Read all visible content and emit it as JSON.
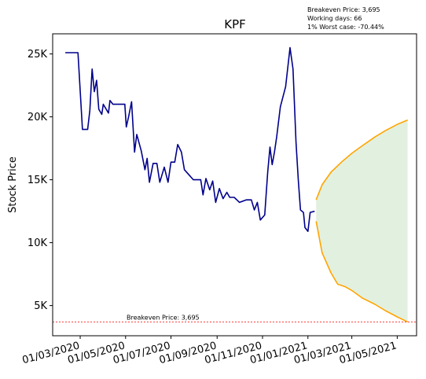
{
  "stats": {
    "breakeven": "Breakeven Price: 3,695",
    "working_days": "Working days: 66",
    "worst_case": "1% Worst case: -70.44%"
  },
  "chart_data": {
    "type": "line",
    "title": "KPF",
    "xlabel": "",
    "ylabel": "Stock Price",
    "x_ticks": [
      "01/03/2020",
      "01/05/2020",
      "01/07/2020",
      "01/09/2020",
      "01/11/2020",
      "01/01/2021",
      "01/03/2021",
      "01/05/2021"
    ],
    "y_ticks": [
      "5K",
      "10K",
      "15K",
      "20K",
      "25K"
    ],
    "xlim": [
      "2020-01-24",
      "2021-05-27"
    ],
    "ylim": [
      2600,
      26600
    ],
    "grid": false,
    "colors": {
      "history": "#00008b",
      "forecast": "#ffa500",
      "band_fill": "#e2f0e0",
      "breakeven": "#ff0000"
    },
    "series": [
      {
        "key": "history",
        "points": [
          [
            "2020-02-10",
            25100
          ],
          [
            "2020-02-27",
            25100
          ],
          [
            "2020-03-04",
            19000
          ],
          [
            "2020-03-11",
            19000
          ],
          [
            "2020-03-14",
            20500
          ],
          [
            "2020-03-17",
            23800
          ],
          [
            "2020-03-20",
            22000
          ],
          [
            "2020-03-23",
            22900
          ],
          [
            "2020-03-26",
            20600
          ],
          [
            "2020-03-30",
            20200
          ],
          [
            "2020-04-01",
            21000
          ],
          [
            "2020-04-08",
            20300
          ],
          [
            "2020-04-10",
            21300
          ],
          [
            "2020-04-14",
            21000
          ],
          [
            "2020-04-30",
            21000
          ],
          [
            "2020-05-02",
            19200
          ],
          [
            "2020-05-05",
            20000
          ],
          [
            "2020-05-09",
            21200
          ],
          [
            "2020-05-13",
            17200
          ],
          [
            "2020-05-16",
            18600
          ],
          [
            "2020-05-22",
            17300
          ],
          [
            "2020-05-27",
            15800
          ],
          [
            "2020-05-30",
            16700
          ],
          [
            "2020-06-02",
            14800
          ],
          [
            "2020-06-07",
            16300
          ],
          [
            "2020-06-12",
            16300
          ],
          [
            "2020-06-16",
            14800
          ],
          [
            "2020-06-22",
            16000
          ],
          [
            "2020-06-27",
            14800
          ],
          [
            "2020-07-01",
            16400
          ],
          [
            "2020-07-06",
            16400
          ],
          [
            "2020-07-10",
            17800
          ],
          [
            "2020-07-15",
            17200
          ],
          [
            "2020-07-19",
            15800
          ],
          [
            "2020-07-25",
            15400
          ],
          [
            "2020-07-31",
            15000
          ],
          [
            "2020-08-10",
            15000
          ],
          [
            "2020-08-13",
            13800
          ],
          [
            "2020-08-17",
            15100
          ],
          [
            "2020-08-22",
            14200
          ],
          [
            "2020-08-26",
            14900
          ],
          [
            "2020-08-30",
            13200
          ],
          [
            "2020-09-04",
            14300
          ],
          [
            "2020-09-09",
            13500
          ],
          [
            "2020-09-14",
            14000
          ],
          [
            "2020-09-18",
            13600
          ],
          [
            "2020-09-24",
            13600
          ],
          [
            "2020-10-01",
            13200
          ],
          [
            "2020-10-10",
            13400
          ],
          [
            "2020-10-17",
            13400
          ],
          [
            "2020-10-21",
            12600
          ],
          [
            "2020-10-25",
            13200
          ],
          [
            "2020-10-29",
            11800
          ],
          [
            "2020-11-04",
            12200
          ],
          [
            "2020-11-08",
            15600
          ],
          [
            "2020-11-11",
            17600
          ],
          [
            "2020-11-14",
            16200
          ],
          [
            "2020-11-17",
            17200
          ],
          [
            "2020-11-20",
            18400
          ],
          [
            "2020-11-25",
            20800
          ],
          [
            "2020-12-02",
            22400
          ],
          [
            "2020-12-08",
            25500
          ],
          [
            "2020-12-12",
            23800
          ],
          [
            "2020-12-16",
            18000
          ],
          [
            "2020-12-19",
            15000
          ],
          [
            "2020-12-22",
            12600
          ],
          [
            "2020-12-26",
            12400
          ],
          [
            "2020-12-28",
            11200
          ],
          [
            "2021-01-01",
            10900
          ],
          [
            "2021-01-04",
            12400
          ],
          [
            "2021-01-10",
            12500
          ]
        ]
      },
      {
        "key": "upper",
        "points": [
          [
            "2021-01-12",
            13400
          ],
          [
            "2021-01-20",
            14600
          ],
          [
            "2021-02-01",
            15600
          ],
          [
            "2021-02-15",
            16400
          ],
          [
            "2021-03-01",
            17100
          ],
          [
            "2021-03-15",
            17700
          ],
          [
            "2021-04-01",
            18400
          ],
          [
            "2021-04-15",
            18900
          ],
          [
            "2021-05-01",
            19400
          ],
          [
            "2021-05-15",
            19750
          ]
        ]
      },
      {
        "key": "lower",
        "points": [
          [
            "2021-01-12",
            11700
          ],
          [
            "2021-01-20",
            9200
          ],
          [
            "2021-02-01",
            7600
          ],
          [
            "2021-02-10",
            6700
          ],
          [
            "2021-02-20",
            6500
          ],
          [
            "2021-03-01",
            6200
          ],
          [
            "2021-03-15",
            5600
          ],
          [
            "2021-04-01",
            5100
          ],
          [
            "2021-04-15",
            4600
          ],
          [
            "2021-05-01",
            4100
          ],
          [
            "2021-05-15",
            3700
          ]
        ]
      }
    ],
    "breakeven": {
      "y": 3695,
      "label": "Breakeven Price: 3,695"
    }
  }
}
